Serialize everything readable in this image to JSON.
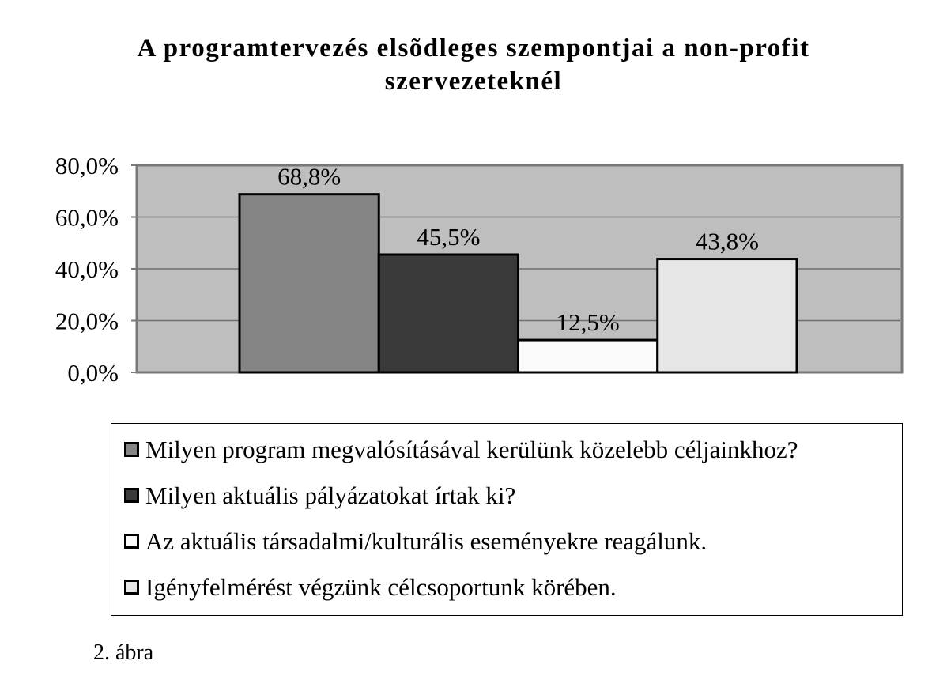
{
  "chart_data": {
    "type": "bar",
    "title_lines": [
      "A programtervezés elsõdleges szempontjai a non-profit",
      "szervezeteknél"
    ],
    "xlabel": "",
    "ylabel": "",
    "ylim": [
      0,
      80
    ],
    "yticks": [
      "80,0%",
      "60,0%",
      "40,0%",
      "20,0%",
      "0,0%"
    ],
    "series": [
      {
        "name": "Milyen program megvalósításával kerülünk közelebb céljainkhoz?",
        "value": 68.8,
        "label": "68,8%",
        "color": "#858585"
      },
      {
        "name": "Milyen aktuális pályázatokat írtak ki?",
        "value": 45.5,
        "label": "45,5%",
        "color": "#3a3a3a"
      },
      {
        "name": "Az aktuális társadalmi/kulturális eseményekre reagálunk.",
        "value": 12.5,
        "label": "12,5%",
        "color": "#fbfbfb"
      },
      {
        "name": "Igényfelmérést végzünk célcsoportunk körében.",
        "value": 43.8,
        "label": "43,8%",
        "color": "#e6e6e6"
      }
    ],
    "grid": true,
    "legend_position": "bottom",
    "plot_background": "#bebebe"
  },
  "caption": "2. ábra"
}
